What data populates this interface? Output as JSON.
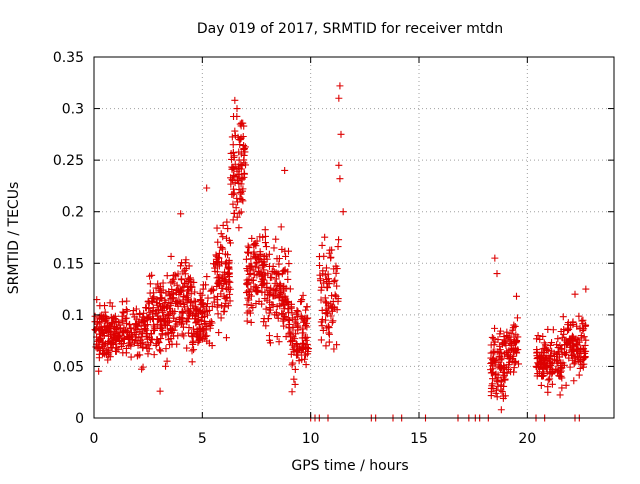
{
  "chart_data": {
    "type": "scatter",
    "title": "Day 019 of 2017, SRMTID for receiver mtdn",
    "xlabel": "GPS time / hours",
    "ylabel": "SRMTID / TECUs",
    "xlim": [
      0,
      24
    ],
    "ylim": [
      0,
      0.35
    ],
    "xticks": [
      0,
      5,
      10,
      15,
      20
    ],
    "xtick_labels": [
      "0",
      "5",
      "10",
      "15",
      "20"
    ],
    "yticks": [
      0,
      0.05,
      0.1,
      0.15,
      0.2,
      0.25,
      0.3,
      0.35
    ],
    "ytick_labels": [
      "0",
      "0.05",
      "0.1",
      "0.15",
      "0.2",
      "0.25",
      "0.3",
      "0.35"
    ],
    "grid": true,
    "marker": "+",
    "series": [
      {
        "name": "SRMTID",
        "color": "#dd0000",
        "segments": [
          {
            "t_start": 0.0,
            "t_end": 1.0,
            "base": 0.08,
            "spread": 0.028,
            "count": 120
          },
          {
            "t_start": 1.0,
            "t_end": 2.5,
            "base": 0.085,
            "spread": 0.028,
            "count": 140
          },
          {
            "t_start": 2.5,
            "t_end": 3.5,
            "base": 0.1,
            "spread": 0.04,
            "count": 120
          },
          {
            "t_start": 3.5,
            "t_end": 4.5,
            "base": 0.115,
            "spread": 0.04,
            "count": 130
          },
          {
            "t_start": 4.5,
            "t_end": 5.5,
            "base": 0.095,
            "spread": 0.04,
            "count": 110
          },
          {
            "t_start": 5.5,
            "t_end": 6.3,
            "base": 0.14,
            "spread": 0.05,
            "count": 100
          },
          {
            "t_start": 6.3,
            "t_end": 7.0,
            "base": 0.24,
            "spread": 0.05,
            "count": 90
          },
          {
            "t_start": 7.0,
            "t_end": 8.0,
            "base": 0.14,
            "spread": 0.045,
            "count": 120
          },
          {
            "t_start": 8.0,
            "t_end": 9.0,
            "base": 0.12,
            "spread": 0.05,
            "count": 110
          },
          {
            "t_start": 9.0,
            "t_end": 9.9,
            "base": 0.08,
            "spread": 0.04,
            "count": 100
          },
          {
            "t_start": 10.4,
            "t_end": 11.3,
            "base": 0.12,
            "spread": 0.05,
            "count": 80
          },
          {
            "t_start": 18.3,
            "t_end": 19.0,
            "base": 0.05,
            "spread": 0.035,
            "count": 90
          },
          {
            "t_start": 19.0,
            "t_end": 19.6,
            "base": 0.065,
            "spread": 0.03,
            "count": 60
          },
          {
            "t_start": 20.4,
            "t_end": 21.6,
            "base": 0.055,
            "spread": 0.025,
            "count": 130
          },
          {
            "t_start": 21.6,
            "t_end": 22.7,
            "base": 0.07,
            "spread": 0.03,
            "count": 110
          }
        ],
        "peaks": [
          {
            "x": 6.5,
            "y": 0.308
          },
          {
            "x": 6.6,
            "y": 0.3
          },
          {
            "x": 6.75,
            "y": 0.285
          },
          {
            "x": 6.7,
            "y": 0.27
          },
          {
            "x": 11.35,
            "y": 0.322
          },
          {
            "x": 11.3,
            "y": 0.31
          },
          {
            "x": 11.4,
            "y": 0.275
          },
          {
            "x": 11.3,
            "y": 0.245
          },
          {
            "x": 11.35,
            "y": 0.232
          },
          {
            "x": 11.5,
            "y": 0.2
          },
          {
            "x": 5.2,
            "y": 0.223
          },
          {
            "x": 8.8,
            "y": 0.24
          },
          {
            "x": 4.0,
            "y": 0.198
          },
          {
            "x": 3.05,
            "y": 0.026
          },
          {
            "x": 18.5,
            "y": 0.155
          },
          {
            "x": 18.6,
            "y": 0.14
          },
          {
            "x": 19.5,
            "y": 0.118
          },
          {
            "x": 22.7,
            "y": 0.125
          },
          {
            "x": 22.2,
            "y": 0.12
          },
          {
            "x": 18.8,
            "y": 0.008
          }
        ],
        "zero_points": [
          10.0,
          10.2,
          10.4,
          10.8,
          12.8,
          13.0,
          13.8,
          14.2,
          15.3,
          16.8,
          17.3,
          17.6,
          17.8,
          18.2,
          20.4,
          20.8,
          22.2,
          22.4
        ]
      }
    ]
  }
}
